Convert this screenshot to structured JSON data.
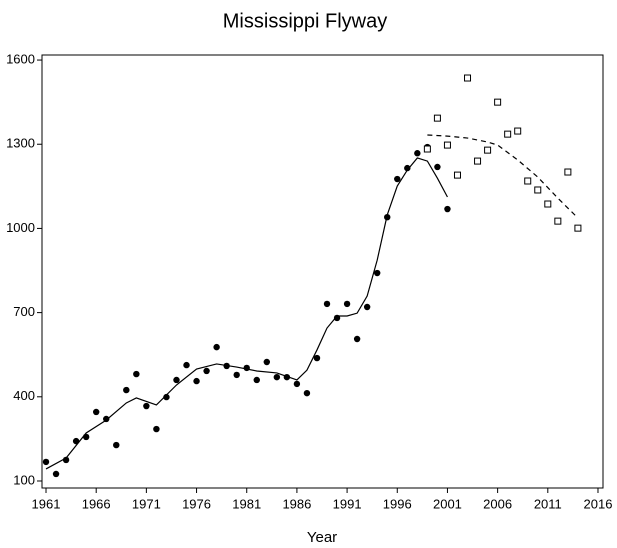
{
  "chart_data": {
    "type": "scatter",
    "title": "Mississippi Flyway",
    "xlabel": "Year",
    "xlim": [
      1960.6,
      2016.5
    ],
    "ylim": [
      75,
      1618
    ],
    "xticks": [
      1961,
      1966,
      1971,
      1976,
      1981,
      1986,
      1991,
      1996,
      2001,
      2006,
      2011,
      2016
    ],
    "yticks": [
      100,
      400,
      700,
      1000,
      1300,
      1600
    ],
    "series": [
      {
        "style": "points",
        "marker": "circle",
        "color": "#000000",
        "x": [
          1961,
          1962,
          1963,
          1964,
          1965,
          1966,
          1967,
          1968,
          1969,
          1970,
          1971,
          1972,
          1973,
          1974,
          1975,
          1976,
          1977,
          1978,
          1979,
          1980,
          1981,
          1982,
          1983,
          1984,
          1985,
          1986,
          1987,
          1988,
          1989,
          1990,
          1991,
          1992,
          1993,
          1994,
          1995,
          1996,
          1997,
          1998,
          1999,
          2000,
          2001
        ],
        "values": [
          168,
          125,
          175,
          242,
          257,
          346,
          321,
          228,
          424,
          481,
          367,
          285,
          399,
          460,
          513,
          456,
          492,
          577,
          510,
          478,
          503,
          460,
          524,
          470,
          470,
          446,
          413,
          538,
          731,
          681,
          731,
          606,
          720,
          841,
          1040,
          1176,
          1215,
          1268,
          1290,
          1219,
          1069
        ]
      },
      {
        "style": "points",
        "marker": "square",
        "color": "#000000",
        "x": [
          1999,
          2000,
          2001,
          2002,
          2003,
          2004,
          2005,
          2006,
          2007,
          2008,
          2009,
          2010,
          2011,
          2012,
          2013,
          2014
        ],
        "values": [
          1283,
          1393,
          1297,
          1190,
          1536,
          1240,
          1279,
          1450,
          1336,
          1347,
          1169,
          1137,
          1087,
          1026,
          1201,
          1001
        ]
      },
      {
        "style": "line",
        "dash": false,
        "color": "#000000",
        "x": [
          1961,
          1963,
          1965,
          1967,
          1969,
          1970,
          1972,
          1974,
          1976,
          1978,
          1980,
          1982,
          1984,
          1986,
          1987,
          1988,
          1989,
          1990,
          1991,
          1992,
          1993,
          1994,
          1995,
          1996,
          1997,
          1998,
          1999,
          2000,
          2001
        ],
        "values": [
          143,
          182,
          271,
          317,
          378,
          396,
          371,
          442,
          499,
          517,
          506,
          492,
          485,
          460,
          495,
          567,
          645,
          688,
          688,
          698,
          759,
          887,
          1048,
          1151,
          1208,
          1251,
          1240,
          1179,
          1112
        ]
      },
      {
        "style": "line",
        "dash": true,
        "color": "#000000",
        "x": [
          1999,
          2001,
          2003,
          2005,
          2006,
          2008,
          2010,
          2012,
          2014
        ],
        "values": [
          1333,
          1329,
          1322,
          1308,
          1297,
          1244,
          1183,
          1108,
          1037
        ]
      }
    ]
  }
}
